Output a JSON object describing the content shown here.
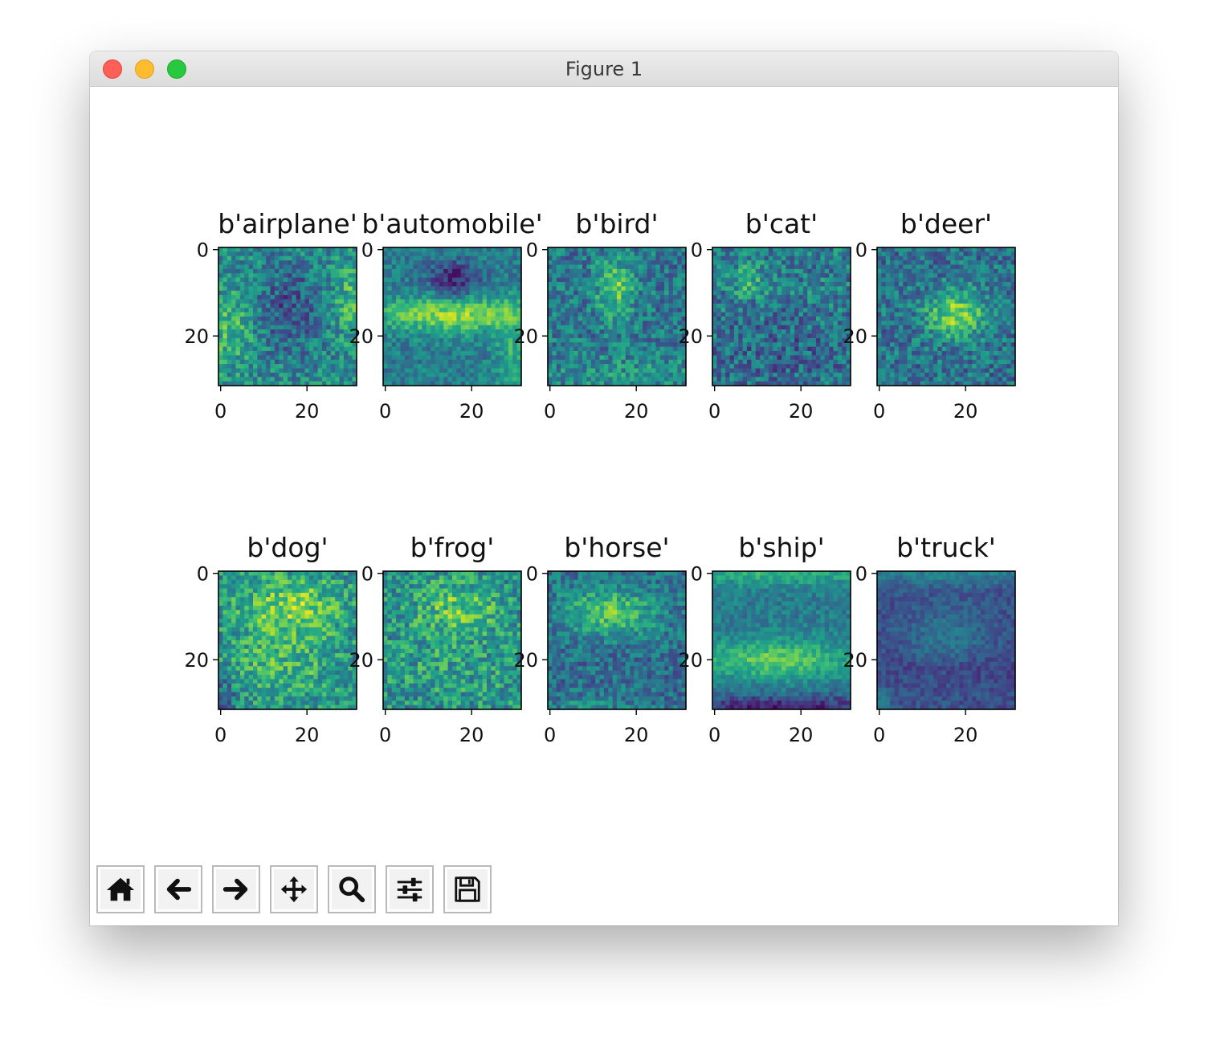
{
  "window": {
    "title": "Figure 1"
  },
  "toolbar": {
    "buttons": [
      {
        "id": "home",
        "icon": "home-icon"
      },
      {
        "id": "back",
        "icon": "arrow-left-icon"
      },
      {
        "id": "forward",
        "icon": "arrow-right-icon"
      },
      {
        "id": "pan",
        "icon": "move-icon"
      },
      {
        "id": "zoom",
        "icon": "magnifier-icon"
      },
      {
        "id": "configure-subplots",
        "icon": "sliders-icon"
      },
      {
        "id": "save",
        "icon": "floppy-disk-icon"
      }
    ]
  },
  "chart_data": {
    "type": "heatmap",
    "colormap": "viridis",
    "layout": {
      "rows": 2,
      "cols": 5
    },
    "image_size": [
      32,
      32
    ],
    "xlim": [
      -0.5,
      31.5
    ],
    "ylim": [
      31.5,
      -0.5
    ],
    "x_ticks": [
      0,
      20
    ],
    "y_ticks": [
      0,
      20
    ],
    "panels": [
      {
        "title": "b'airplane'"
      },
      {
        "title": "b'automobile'"
      },
      {
        "title": "b'bird'"
      },
      {
        "title": "b'cat'"
      },
      {
        "title": "b'deer'"
      },
      {
        "title": "b'dog'"
      },
      {
        "title": "b'frog'"
      },
      {
        "title": "b'horse'"
      },
      {
        "title": "b'ship'"
      },
      {
        "title": "b'truck'"
      }
    ]
  }
}
